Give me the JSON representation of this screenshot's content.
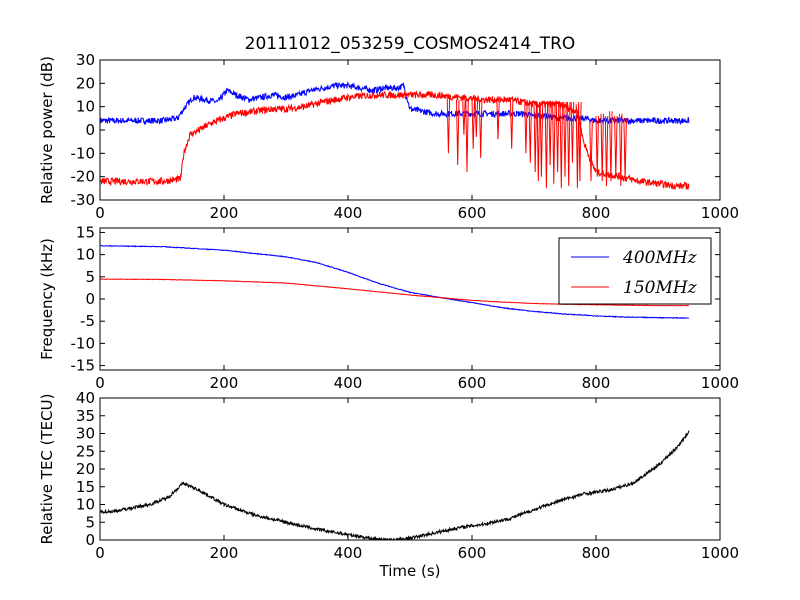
{
  "title": "20111012_053259_COSMOS2414_TRO",
  "colors": {
    "blue": "#0000ff",
    "red": "#ff0000",
    "black": "#000000"
  },
  "chart_data": [
    {
      "type": "line",
      "ylabel": "Relative power (dB)",
      "xlabel": "",
      "xlim": [
        0,
        1000
      ],
      "ylim": [
        -30,
        30
      ],
      "xticks": [
        0,
        200,
        400,
        600,
        800,
        1000
      ],
      "yticks": [
        -30,
        -20,
        -10,
        0,
        10,
        20,
        30
      ],
      "xtick_labels": [
        "0",
        "200",
        "400",
        "600",
        "800",
        "1000"
      ],
      "ytick_labels": [
        "-30",
        "-20",
        "-10",
        "0",
        "10",
        "20",
        "30"
      ],
      "grid": false,
      "series": [
        {
          "color": "#0000ff",
          "noise": 1.3,
          "x": [
            0,
            50,
            100,
            125,
            135,
            150,
            170,
            190,
            205,
            220,
            240,
            260,
            280,
            300,
            320,
            340,
            360,
            380,
            400,
            420,
            440,
            460,
            480,
            490,
            500,
            520,
            540,
            560,
            580,
            600,
            620,
            640,
            660,
            680,
            700,
            720,
            740,
            760,
            780,
            800,
            840,
            880,
            920,
            950
          ],
          "y": [
            4,
            4,
            4,
            5,
            9,
            14,
            13,
            12,
            17,
            15,
            13,
            14,
            15,
            14,
            15,
            17,
            18,
            19,
            19,
            18,
            17,
            18,
            18,
            19,
            9,
            8,
            7,
            7,
            7,
            7,
            7,
            7,
            7,
            7,
            6,
            6,
            5,
            5,
            5,
            4,
            4,
            4,
            4,
            4
          ]
        },
        {
          "color": "#ff0000",
          "noise": 1.5,
          "x": [
            0,
            50,
            100,
            130,
            135,
            145,
            160,
            180,
            200,
            220,
            250,
            280,
            300,
            330,
            360,
            400,
            440,
            480,
            500,
            540,
            580,
            620,
            660,
            700,
            740,
            770,
            780,
            790,
            800,
            820,
            840,
            870,
            900,
            930,
            950
          ],
          "y": [
            -22,
            -22,
            -22,
            -21,
            -10,
            -2,
            0,
            3,
            5,
            7,
            8,
            9,
            9,
            10,
            12,
            14,
            15,
            15,
            15,
            15,
            14,
            13,
            13,
            11,
            11,
            8,
            -5,
            -12,
            -18,
            -19,
            -20,
            -22,
            -23,
            -24,
            -24
          ]
        }
      ],
      "dropouts": [
        [
          560,
          14,
          -10
        ],
        [
          575,
          13,
          -15
        ],
        [
          585,
          13,
          -2
        ],
        [
          590,
          13,
          -18
        ],
        [
          600,
          13,
          -8
        ],
        [
          605,
          13,
          -3
        ],
        [
          612,
          13,
          -12
        ],
        [
          640,
          13,
          -4
        ],
        [
          662,
          13,
          -8
        ],
        [
          685,
          13,
          -10
        ],
        [
          692,
          12,
          -14
        ],
        [
          700,
          12,
          -18
        ],
        [
          705,
          12,
          -22
        ],
        [
          710,
          12,
          -20
        ],
        [
          718,
          12,
          -25
        ],
        [
          724,
          12,
          -15
        ],
        [
          730,
          12,
          -23
        ],
        [
          736,
          12,
          -18
        ],
        [
          742,
          12,
          -25
        ],
        [
          748,
          12,
          -20
        ],
        [
          754,
          12,
          -24
        ],
        [
          760,
          12,
          -14
        ],
        [
          768,
          11,
          -25
        ],
        [
          772,
          12,
          -22
        ],
        [
          790,
          4,
          -22
        ],
        [
          800,
          6,
          -20
        ],
        [
          808,
          7,
          -22
        ],
        [
          815,
          6,
          -24
        ],
        [
          822,
          8,
          -22
        ],
        [
          830,
          6,
          -20
        ],
        [
          838,
          7,
          -24
        ],
        [
          845,
          5,
          -22
        ]
      ]
    },
    {
      "type": "line",
      "ylabel": "Frequency (kHz)",
      "xlabel": "",
      "xlim": [
        0,
        1000
      ],
      "ylim": [
        -16,
        16
      ],
      "xticks": [
        0,
        200,
        400,
        600,
        800,
        1000
      ],
      "yticks": [
        -15,
        -10,
        -5,
        0,
        5,
        10,
        15
      ],
      "xtick_labels": [
        "0",
        "200",
        "400",
        "600",
        "800",
        "1000"
      ],
      "ytick_labels": [
        "-15",
        "-10",
        "-5",
        "0",
        "5",
        "10",
        "15"
      ],
      "legend": "top-right",
      "grid": false,
      "series": [
        {
          "name": "400MHz",
          "color": "#0000ff",
          "noise": 0.08,
          "x": [
            0,
            100,
            200,
            300,
            350,
            400,
            450,
            500,
            550,
            600,
            650,
            700,
            750,
            800,
            850,
            900,
            950
          ],
          "y": [
            12,
            11.8,
            11,
            9.5,
            8.2,
            6,
            3.5,
            1.5,
            0.3,
            -0.8,
            -2,
            -2.8,
            -3.4,
            -3.8,
            -4.1,
            -4.2,
            -4.3
          ]
        },
        {
          "name": "150MHz",
          "color": "#ff0000",
          "noise": 0.05,
          "x": [
            0,
            100,
            200,
            300,
            400,
            450,
            500,
            550,
            600,
            650,
            700,
            750,
            800,
            850,
            900,
            950
          ],
          "y": [
            4.5,
            4.4,
            4.1,
            3.6,
            2.3,
            1.6,
            0.9,
            0.3,
            -0.3,
            -0.7,
            -1,
            -1.2,
            -1.3,
            -1.4,
            -1.5,
            -1.5
          ]
        }
      ]
    },
    {
      "type": "line",
      "ylabel": "Relative TEC (TECU)",
      "xlabel": "Time (s)",
      "xlim": [
        0,
        1000
      ],
      "ylim": [
        0,
        40
      ],
      "xticks": [
        0,
        200,
        400,
        600,
        800,
        1000
      ],
      "yticks": [
        0,
        5,
        10,
        15,
        20,
        25,
        30,
        35,
        40
      ],
      "xtick_labels": [
        "0",
        "200",
        "400",
        "600",
        "800",
        "1000"
      ],
      "ytick_labels": [
        "0",
        "5",
        "10",
        "15",
        "20",
        "25",
        "30",
        "35",
        "40"
      ],
      "grid": false,
      "series": [
        {
          "color": "#000000",
          "noise": 0.45,
          "x": [
            0,
            20,
            50,
            80,
            110,
            134,
            160,
            200,
            250,
            300,
            350,
            400,
            440,
            470,
            500,
            540,
            580,
            620,
            660,
            700,
            740,
            780,
            820,
            860,
            900,
            930,
            950
          ],
          "y": [
            8,
            8,
            9,
            10,
            12,
            16,
            14,
            10,
            7,
            5,
            3,
            1.5,
            0.4,
            0,
            0.5,
            2,
            3.5,
            4.5,
            6,
            8.5,
            11,
            13,
            14,
            16,
            21,
            26,
            30.5
          ]
        }
      ]
    }
  ]
}
